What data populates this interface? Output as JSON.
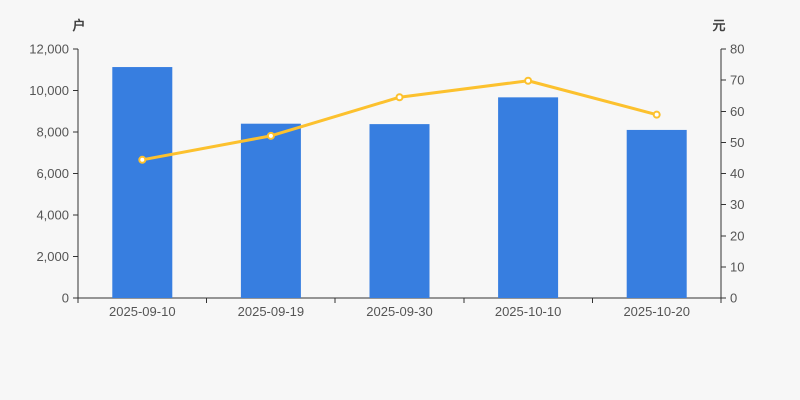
{
  "chart_data": {
    "type": "bar+line",
    "title": "",
    "legend": false,
    "grid": false,
    "background_color": "#f7f7f7",
    "axis_color": "#333333",
    "text_color": "#555555",
    "categories": [
      "2025-09-10",
      "2025-09-19",
      "2025-09-30",
      "2025-10-10",
      "2025-10-20"
    ],
    "series": [
      {
        "type": "bar",
        "axis": "left",
        "color": "#377ee0",
        "values": [
          11130,
          8400,
          8380,
          9670,
          8100
        ]
      },
      {
        "type": "line",
        "axis": "right",
        "color": "#fcc12e",
        "marker": "hollow-circle",
        "marker_fill": "#ffffff",
        "values": [
          44.4,
          52.1,
          64.5,
          69.8,
          58.9
        ]
      }
    ],
    "left_axis": {
      "label": "户",
      "min": 0,
      "max": 12000,
      "tick_step": 2000,
      "tick_labels": [
        "0",
        "2,000",
        "4,000",
        "6,000",
        "8,000",
        "10,000",
        "12,000"
      ]
    },
    "right_axis": {
      "label": "元",
      "min": 0,
      "max": 80,
      "tick_step": 10,
      "tick_labels": [
        "0",
        "10",
        "20",
        "30",
        "40",
        "50",
        "60",
        "70",
        "80"
      ]
    }
  }
}
